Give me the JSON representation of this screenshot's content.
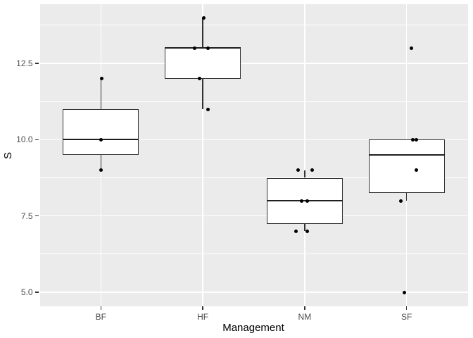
{
  "chart_data": {
    "type": "boxplot",
    "title": "",
    "xlabel": "Management",
    "ylabel": "S",
    "categories": [
      "BF",
      "HF",
      "NM",
      "SF"
    ],
    "ylim": [
      4.55,
      14.45
    ],
    "y_major_ticks": [
      5.0,
      7.5,
      10.0,
      12.5
    ],
    "y_tick_labels": [
      "5.0",
      "7.5",
      "10.0",
      "12.5"
    ],
    "y_minor_ticks": [
      6.25,
      8.75,
      11.25,
      13.75
    ],
    "grid": true,
    "legend": "none",
    "boxes": [
      {
        "category": "BF",
        "whisker_low": 9,
        "q1": 9.5,
        "median": 10,
        "q3": 11,
        "whisker_high": 12,
        "outliers": [],
        "values": [
          9,
          10,
          12
        ],
        "points": [
          {
            "value": 12,
            "dx": 1
          },
          {
            "value": 10,
            "dx": 0.5
          },
          {
            "value": 9,
            "dx": 0.5
          }
        ]
      },
      {
        "category": "HF",
        "whisker_low": 11,
        "q1": 12,
        "median": 13,
        "q3": 13,
        "whisker_high": 14,
        "outliers": [],
        "values": [
          11,
          12,
          13,
          13,
          14
        ],
        "points": [
          {
            "value": 14,
            "dx": 1
          },
          {
            "value": 13,
            "dx": -12
          },
          {
            "value": 13,
            "dx": 7
          },
          {
            "value": 12,
            "dx": -5
          },
          {
            "value": 11,
            "dx": 7
          }
        ]
      },
      {
        "category": "NM",
        "whisker_low": 7,
        "q1": 7.25,
        "median": 8,
        "q3": 8.75,
        "whisker_high": 9,
        "outliers": [],
        "values": [
          7,
          7,
          8,
          8,
          9,
          9
        ],
        "points": [
          {
            "value": 9,
            "dx": -9
          },
          {
            "value": 9,
            "dx": 11
          },
          {
            "value": 8,
            "dx": -4
          },
          {
            "value": 8,
            "dx": 3.5
          },
          {
            "value": 7,
            "dx": -12
          },
          {
            "value": 7,
            "dx": 4
          }
        ]
      },
      {
        "category": "SF",
        "whisker_low": 8,
        "q1": 8.25,
        "median": 9.5,
        "q3": 10,
        "whisker_high": 10,
        "outliers": [
          13,
          5
        ],
        "values": [
          5,
          8,
          9,
          10,
          10,
          13
        ],
        "points": [
          {
            "value": 13,
            "dx": 6.5
          },
          {
            "value": 10,
            "dx": 8.5
          },
          {
            "value": 10,
            "dx": 13.5
          },
          {
            "value": 9,
            "dx": 13.5
          },
          {
            "value": 8,
            "dx": -8.5
          },
          {
            "value": 5,
            "dx": -3.5
          }
        ]
      }
    ],
    "theme": {
      "background": "#FFFFFF",
      "panel_bg": "#EBEBEB",
      "grid_color": "#FFFFFF",
      "box_fill": "#FFFFFF",
      "box_border": "#333333",
      "median_color": "#1F1F1F",
      "point_color": "#000000",
      "tick_mark_color": "#333333",
      "tick_label_color": "#4D4D4D",
      "axis_title_color": "#000000"
    }
  }
}
